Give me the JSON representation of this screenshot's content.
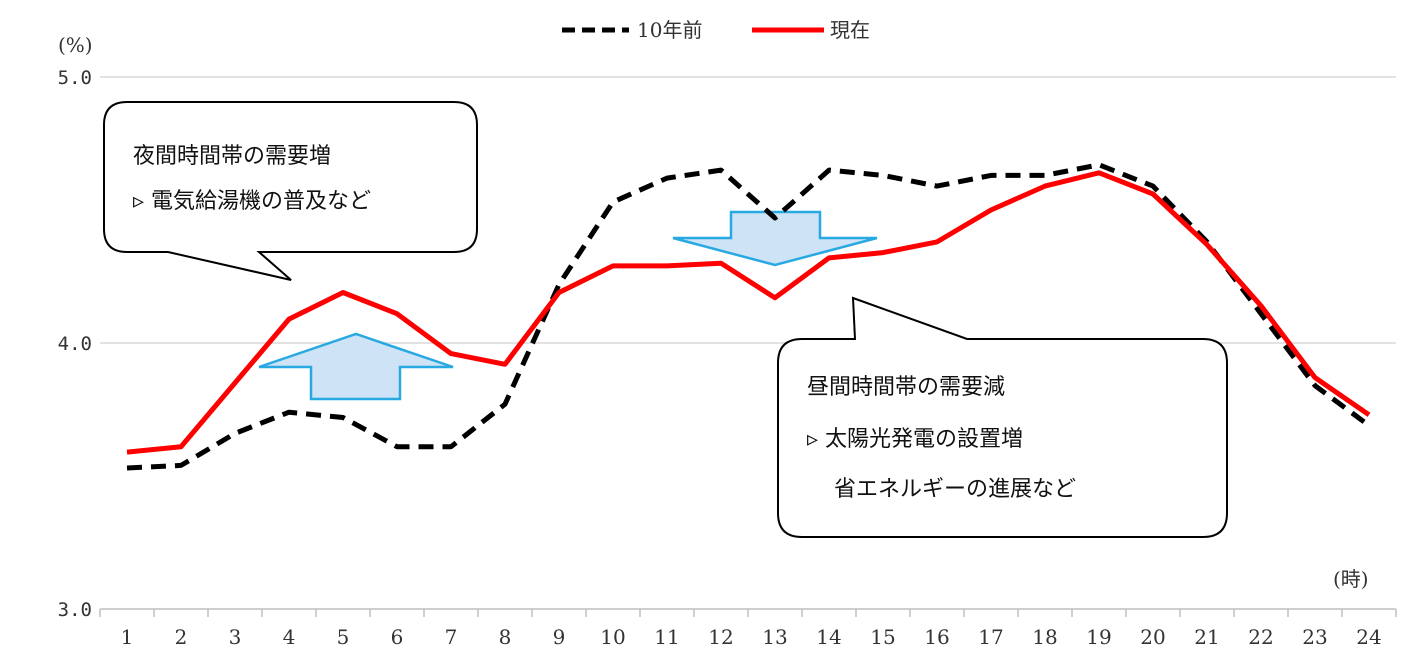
{
  "chart_data": {
    "type": "line",
    "ylabel": "(%)",
    "xlabel": "(時)",
    "ylim": [
      3.0,
      5.0
    ],
    "yticks": [
      "3.0",
      "4.0",
      "5.0"
    ],
    "grid": true,
    "legend_position": "top-center",
    "categories": [
      "1",
      "2",
      "3",
      "4",
      "5",
      "6",
      "7",
      "8",
      "9",
      "10",
      "11",
      "12",
      "13",
      "14",
      "15",
      "16",
      "17",
      "18",
      "19",
      "20",
      "21",
      "22",
      "23",
      "24"
    ],
    "series": [
      {
        "name": "10年前",
        "style": "dashed",
        "color": "#000000",
        "values": [
          3.53,
          3.54,
          3.66,
          3.74,
          3.72,
          3.61,
          3.61,
          3.77,
          4.22,
          4.53,
          4.62,
          4.65,
          4.47,
          4.65,
          4.63,
          4.59,
          4.63,
          4.63,
          4.67,
          4.59,
          4.38,
          4.11,
          3.84,
          3.69
        ]
      },
      {
        "name": "現在",
        "style": "solid",
        "color": "#ff0000",
        "values": [
          3.59,
          3.61,
          3.85,
          4.09,
          4.19,
          4.11,
          3.96,
          3.92,
          4.19,
          4.29,
          4.29,
          4.3,
          4.17,
          4.32,
          4.34,
          4.38,
          4.5,
          4.59,
          4.64,
          4.56,
          4.37,
          4.14,
          3.87,
          3.73
        ]
      }
    ],
    "annotations": [
      {
        "lines": [
          "夜間時間帯の需要増",
          "▹ 電気給湯機の普及など"
        ],
        "arrow": "up"
      },
      {
        "lines": [
          "昼間時間帯の需要減",
          "▹ 太陽光発電の設置増",
          "省エネルギーの進展など"
        ],
        "arrow": "down"
      }
    ]
  },
  "colors": {
    "gridline": "#d9d9d9",
    "arrow_fill": "#cfe3f7",
    "arrow_stroke": "#29a9e1"
  }
}
